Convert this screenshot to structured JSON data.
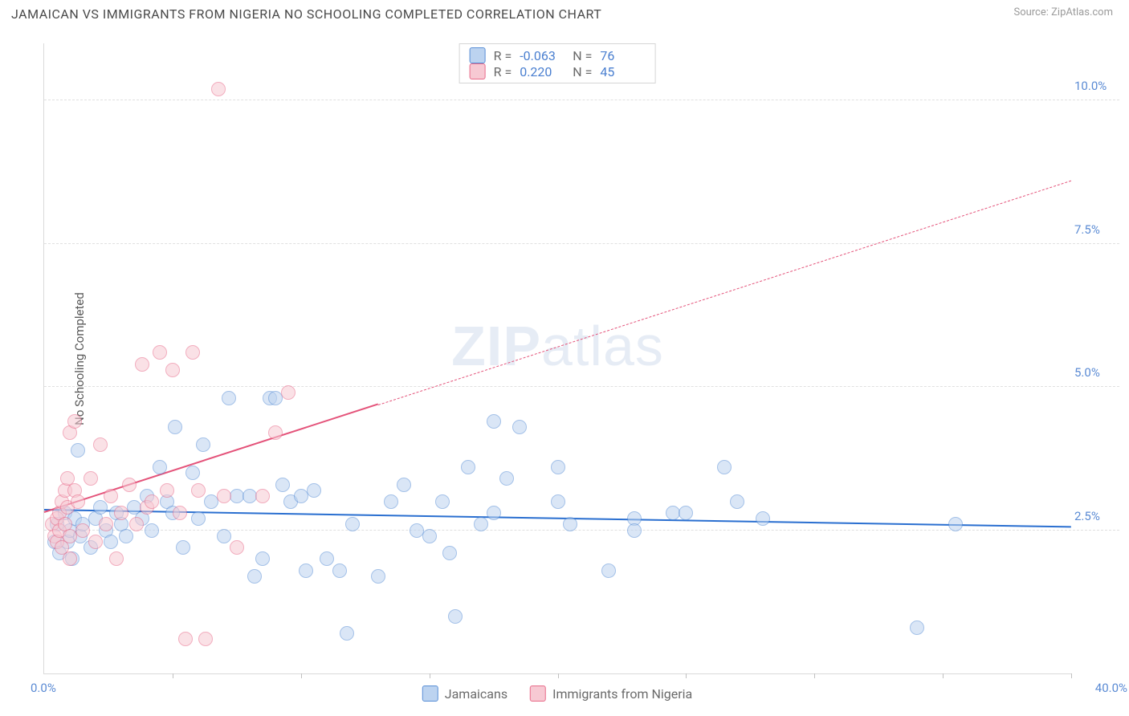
{
  "header": {
    "title": "JAMAICAN VS IMMIGRANTS FROM NIGERIA NO SCHOOLING COMPLETED CORRELATION CHART",
    "source": "Source: ZipAtlas.com"
  },
  "watermark": {
    "bold": "ZIP",
    "rest": "atlas"
  },
  "chart": {
    "type": "scatter",
    "background_color": "#ffffff",
    "grid_color": "#e0e0e0",
    "axis_color": "#dadada",
    "tick_label_color": "#5b8bd4",
    "axis_label_color": "#5a5a5a",
    "ylabel": "No Schooling Completed",
    "label_fontsize": 15,
    "xlim": [
      0,
      40
    ],
    "ylim": [
      0,
      11
    ],
    "x_start_label": "0.0%",
    "x_end_label": "40.0%",
    "xtick_positions": [
      5,
      10,
      15,
      20,
      25,
      30,
      35,
      40
    ],
    "yticks": [
      {
        "v": 2.5,
        "label": "2.5%"
      },
      {
        "v": 5.0,
        "label": "5.0%"
      },
      {
        "v": 7.5,
        "label": "7.5%"
      },
      {
        "v": 10.0,
        "label": "10.0%"
      }
    ],
    "marker_radius": 9,
    "marker_opacity": 0.55,
    "series": [
      {
        "id": "jamaicans",
        "name": "Jamaicans",
        "fill_color": "#bcd3f0",
        "stroke_color": "#5a8fd6",
        "line_color": "#2a6fd0",
        "R": "-0.063",
        "N": "76",
        "trend": {
          "x1": 0,
          "y1": 2.85,
          "x2": 40,
          "y2": 2.55,
          "solid_until_x": 40
        },
        "points": [
          [
            0.4,
            2.3
          ],
          [
            0.5,
            2.6
          ],
          [
            0.6,
            2.1
          ],
          [
            0.8,
            2.8
          ],
          [
            0.9,
            2.3
          ],
          [
            1.0,
            2.5
          ],
          [
            1.1,
            2.0
          ],
          [
            1.2,
            2.7
          ],
          [
            1.3,
            3.9
          ],
          [
            1.4,
            2.4
          ],
          [
            1.5,
            2.6
          ],
          [
            1.8,
            2.2
          ],
          [
            2.0,
            2.7
          ],
          [
            2.2,
            2.9
          ],
          [
            2.4,
            2.5
          ],
          [
            2.6,
            2.3
          ],
          [
            2.8,
            2.8
          ],
          [
            3.0,
            2.6
          ],
          [
            3.2,
            2.4
          ],
          [
            3.5,
            2.9
          ],
          [
            3.8,
            2.7
          ],
          [
            4.0,
            3.1
          ],
          [
            4.2,
            2.5
          ],
          [
            4.5,
            3.6
          ],
          [
            4.8,
            3.0
          ],
          [
            5.0,
            2.8
          ],
          [
            5.1,
            4.3
          ],
          [
            5.4,
            2.2
          ],
          [
            5.8,
            3.5
          ],
          [
            6.0,
            2.7
          ],
          [
            6.2,
            4.0
          ],
          [
            6.5,
            3.0
          ],
          [
            7.0,
            2.4
          ],
          [
            7.2,
            4.8
          ],
          [
            7.5,
            3.1
          ],
          [
            8.0,
            3.1
          ],
          [
            8.2,
            1.7
          ],
          [
            8.5,
            2.0
          ],
          [
            8.8,
            4.8
          ],
          [
            9.0,
            4.8
          ],
          [
            9.3,
            3.3
          ],
          [
            9.6,
            3.0
          ],
          [
            10.0,
            3.1
          ],
          [
            10.2,
            1.8
          ],
          [
            10.5,
            3.2
          ],
          [
            11.0,
            2.0
          ],
          [
            11.5,
            1.8
          ],
          [
            11.8,
            0.7
          ],
          [
            12.0,
            2.6
          ],
          [
            13.0,
            1.7
          ],
          [
            13.5,
            3.0
          ],
          [
            14.0,
            3.3
          ],
          [
            14.5,
            2.5
          ],
          [
            15.0,
            2.4
          ],
          [
            15.5,
            3.0
          ],
          [
            15.8,
            2.1
          ],
          [
            16.0,
            1.0
          ],
          [
            16.5,
            3.6
          ],
          [
            17.0,
            2.6
          ],
          [
            17.5,
            4.4
          ],
          [
            17.5,
            2.8
          ],
          [
            18.0,
            3.4
          ],
          [
            18.5,
            4.3
          ],
          [
            20.0,
            3.0
          ],
          [
            20.0,
            3.6
          ],
          [
            20.5,
            2.6
          ],
          [
            22.0,
            1.8
          ],
          [
            23.0,
            2.7
          ],
          [
            23.0,
            2.5
          ],
          [
            24.5,
            2.8
          ],
          [
            25.0,
            2.8
          ],
          [
            26.5,
            3.6
          ],
          [
            27.0,
            3.0
          ],
          [
            28.0,
            2.7
          ],
          [
            34.0,
            0.8
          ],
          [
            35.5,
            2.6
          ]
        ]
      },
      {
        "id": "nigeria",
        "name": "Immigrants from Nigeria",
        "fill_color": "#f7c9d3",
        "stroke_color": "#e86b8a",
        "line_color": "#e4537a",
        "R": "0.220",
        "N": "45",
        "trend": {
          "x1": 0,
          "y1": 2.8,
          "x2": 40,
          "y2": 8.6,
          "solid_until_x": 13
        },
        "points": [
          [
            0.3,
            2.6
          ],
          [
            0.4,
            2.4
          ],
          [
            0.5,
            2.7
          ],
          [
            0.5,
            2.3
          ],
          [
            0.6,
            2.8
          ],
          [
            0.6,
            2.5
          ],
          [
            0.7,
            3.0
          ],
          [
            0.7,
            2.2
          ],
          [
            0.8,
            3.2
          ],
          [
            0.8,
            2.6
          ],
          [
            0.9,
            2.9
          ],
          [
            0.9,
            3.4
          ],
          [
            1.0,
            4.2
          ],
          [
            1.0,
            2.4
          ],
          [
            1.0,
            2.0
          ],
          [
            1.2,
            3.2
          ],
          [
            1.2,
            4.4
          ],
          [
            1.3,
            3.0
          ],
          [
            1.5,
            2.5
          ],
          [
            1.8,
            3.4
          ],
          [
            2.0,
            2.3
          ],
          [
            2.2,
            4.0
          ],
          [
            2.4,
            2.6
          ],
          [
            2.6,
            3.1
          ],
          [
            2.8,
            2.0
          ],
          [
            3.0,
            2.8
          ],
          [
            3.3,
            3.3
          ],
          [
            3.6,
            2.6
          ],
          [
            3.8,
            5.4
          ],
          [
            4.0,
            2.9
          ],
          [
            4.2,
            3.0
          ],
          [
            4.5,
            5.6
          ],
          [
            4.8,
            3.2
          ],
          [
            5.0,
            5.3
          ],
          [
            5.3,
            2.8
          ],
          [
            5.5,
            0.6
          ],
          [
            5.8,
            5.6
          ],
          [
            6.0,
            3.2
          ],
          [
            6.3,
            0.6
          ],
          [
            6.8,
            10.2
          ],
          [
            7.0,
            3.1
          ],
          [
            7.5,
            2.2
          ],
          [
            8.5,
            3.1
          ],
          [
            9.0,
            4.2
          ],
          [
            9.5,
            4.9
          ]
        ]
      }
    ],
    "stats_box": {
      "r_label": "R =",
      "n_label": "N ="
    },
    "legend_position": "top-center"
  }
}
